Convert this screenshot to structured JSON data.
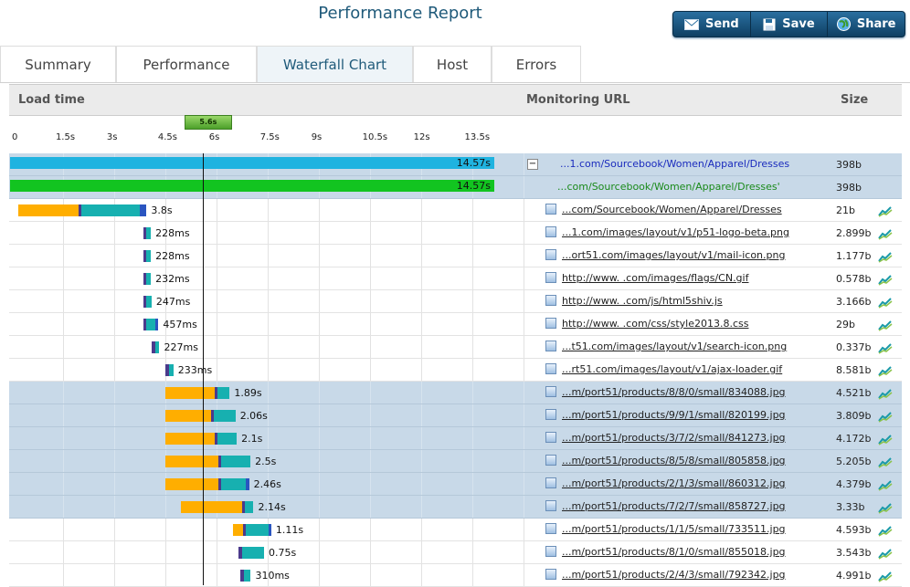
{
  "page": {
    "title": "Performance Report"
  },
  "actions": [
    {
      "key": "send",
      "label": "Send",
      "icon": "envelope-icon"
    },
    {
      "key": "save",
      "label": "Save",
      "icon": "floppy-icon"
    },
    {
      "key": "share",
      "label": "Share",
      "icon": "globe-icon"
    }
  ],
  "tabs": [
    {
      "label": "Summary",
      "active": false
    },
    {
      "label": "Performance",
      "active": false
    },
    {
      "label": "Waterfall Chart",
      "active": true
    },
    {
      "label": "Host",
      "active": false
    },
    {
      "label": "Errors",
      "active": false
    }
  ],
  "columns": {
    "load_time": "Load time",
    "url": "Monitoring URL",
    "size": "Size"
  },
  "timeline": {
    "ticks": [
      "0",
      "1.5s",
      "3s",
      "4.5s",
      "6s",
      "7.5s",
      "9s",
      "10.5s",
      "12s",
      "13.5s"
    ],
    "marker": "5.6s",
    "marker_value_s": 5.6
  },
  "colors": {
    "wait": "#ffae00",
    "connect": "#4b3a8c",
    "receive": "#17b0b0",
    "dns": "#2a55c0",
    "main": "#1fb3e0",
    "rendered": "#12c420",
    "highlight": "#c8d9e8"
  },
  "summary_rows": [
    {
      "time": "14.57s",
      "url": "...1.com/Sourcebook/Women/Apparel/Dresses",
      "size": "398b",
      "color": "main",
      "collapse": "−"
    },
    {
      "time": "14.57s",
      "url": "...com/Sourcebook/Women/Apparel/Dresses'",
      "size": "398b",
      "color": "rendered"
    }
  ],
  "rows": [
    {
      "time": "3.8s",
      "url": "...com/Sourcebook/Women/Apparel/Dresses",
      "size": "21b",
      "icon": "html-file-icon",
      "hl": false,
      "start": 0.2,
      "segs": [
        [
          "wait",
          1.75
        ],
        [
          "connect",
          0.1
        ],
        [
          "receive",
          1.7
        ],
        [
          "dns",
          0.2
        ]
      ]
    },
    {
      "time": "228ms",
      "url": "...1.com/images/layout/v1/p51-logo-beta.png",
      "size": "2.899b",
      "icon": "image-file-icon",
      "hl": false,
      "start": 3.85,
      "segs": [
        [
          "connect",
          0.09
        ],
        [
          "receive",
          0.14
        ]
      ]
    },
    {
      "time": "228ms",
      "url": "...ort51.com/images/layout/v1/mail-icon.png",
      "size": "1.177b",
      "icon": "image-file-icon",
      "hl": false,
      "start": 3.85,
      "segs": [
        [
          "connect",
          0.09
        ],
        [
          "receive",
          0.14
        ]
      ]
    },
    {
      "time": "232ms",
      "url": "http://www.          .com/images/flags/CN.gif",
      "size": "0.578b",
      "icon": "image-file-icon",
      "hl": false,
      "start": 3.85,
      "segs": [
        [
          "connect",
          0.09
        ],
        [
          "receive",
          0.14
        ]
      ]
    },
    {
      "time": "247ms",
      "url": "http://www.          .com/js/html5shiv.js",
      "size": "3.166b",
      "icon": "script-file-icon",
      "hl": false,
      "start": 3.85,
      "segs": [
        [
          "connect",
          0.09
        ],
        [
          "receive",
          0.16
        ]
      ]
    },
    {
      "time": "457ms",
      "url": "http://www.          .com/css/style2013.8.css",
      "size": "29b",
      "icon": "css-file-icon",
      "hl": false,
      "start": 3.85,
      "segs": [
        [
          "connect",
          0.1
        ],
        [
          "receive",
          0.25
        ],
        [
          "dns",
          0.1
        ]
      ]
    },
    {
      "time": "227ms",
      "url": "...t51.com/images/layout/v1/search-icon.png",
      "size": "0.337b",
      "icon": "image-file-icon",
      "hl": false,
      "start": 4.1,
      "segs": [
        [
          "connect",
          0.1
        ],
        [
          "receive",
          0.13
        ]
      ]
    },
    {
      "time": "233ms",
      "url": "...rt51.com/images/layout/v1/ajax-loader.gif",
      "size": "8.581b",
      "icon": "image-file-icon",
      "hl": false,
      "start": 4.5,
      "segs": [
        [
          "connect",
          0.1
        ],
        [
          "receive",
          0.14
        ]
      ]
    },
    {
      "time": "1.89s",
      "url": "...m/port51/products/8/8/0/small/834088.jpg",
      "size": "4.521b",
      "icon": "image-file-icon",
      "hl": true,
      "start": 4.5,
      "segs": [
        [
          "wait",
          1.45
        ],
        [
          "connect",
          0.07
        ],
        [
          "receive",
          0.37
        ]
      ]
    },
    {
      "time": "2.06s",
      "url": "...m/port51/products/9/9/1/small/820199.jpg",
      "size": "3.809b",
      "icon": "image-file-icon",
      "hl": true,
      "start": 4.5,
      "segs": [
        [
          "wait",
          1.35
        ],
        [
          "connect",
          0.07
        ],
        [
          "receive",
          0.64
        ]
      ]
    },
    {
      "time": "2.1s",
      "url": "...m/port51/products/3/7/2/small/841273.jpg",
      "size": "4.172b",
      "icon": "image-file-icon",
      "hl": true,
      "start": 4.5,
      "segs": [
        [
          "wait",
          1.45
        ],
        [
          "connect",
          0.07
        ],
        [
          "receive",
          0.58
        ]
      ]
    },
    {
      "time": "2.5s",
      "url": "...m/port51/products/8/5/8/small/805858.jpg",
      "size": "5.205b",
      "icon": "image-file-icon",
      "hl": true,
      "start": 4.5,
      "segs": [
        [
          "wait",
          1.55
        ],
        [
          "connect",
          0.1
        ],
        [
          "receive",
          0.85
        ]
      ]
    },
    {
      "time": "2.46s",
      "url": "...m/port51/products/2/1/3/small/860312.jpg",
      "size": "4.379b",
      "icon": "image-file-icon",
      "hl": true,
      "start": 4.5,
      "segs": [
        [
          "wait",
          1.55
        ],
        [
          "connect",
          0.1
        ],
        [
          "receive",
          0.72
        ],
        [
          "dns",
          0.09
        ]
      ]
    },
    {
      "time": "2.14s",
      "url": "...m/port51/products/7/2/7/small/858727.jpg",
      "size": "3.33b",
      "icon": "image-file-icon",
      "hl": true,
      "start": 4.95,
      "segs": [
        [
          "wait",
          1.8
        ],
        [
          "connect",
          0.1
        ],
        [
          "receive",
          0.24
        ]
      ]
    },
    {
      "time": "1.11s",
      "url": "...m/port51/products/1/1/5/small/733511.jpg",
      "size": "4.593b",
      "icon": "image-file-icon",
      "hl": false,
      "start": 6.5,
      "segs": [
        [
          "wait",
          0.27
        ],
        [
          "connect",
          0.1
        ],
        [
          "receive",
          0.66
        ],
        [
          "dns",
          0.08
        ]
      ]
    },
    {
      "time": "0.75s",
      "url": "...m/port51/products/8/1/0/small/855018.jpg",
      "size": "3.543b",
      "icon": "image-file-icon",
      "hl": false,
      "start": 6.65,
      "segs": [
        [
          "connect",
          0.1
        ],
        [
          "receive",
          0.65
        ]
      ]
    },
    {
      "time": "310ms",
      "url": "...m/port51/products/2/4/3/small/792342.jpg",
      "size": "4.991b",
      "icon": "image-file-icon",
      "hl": false,
      "start": 6.7,
      "segs": [
        [
          "connect",
          0.1
        ],
        [
          "receive",
          0.21
        ]
      ]
    }
  ]
}
